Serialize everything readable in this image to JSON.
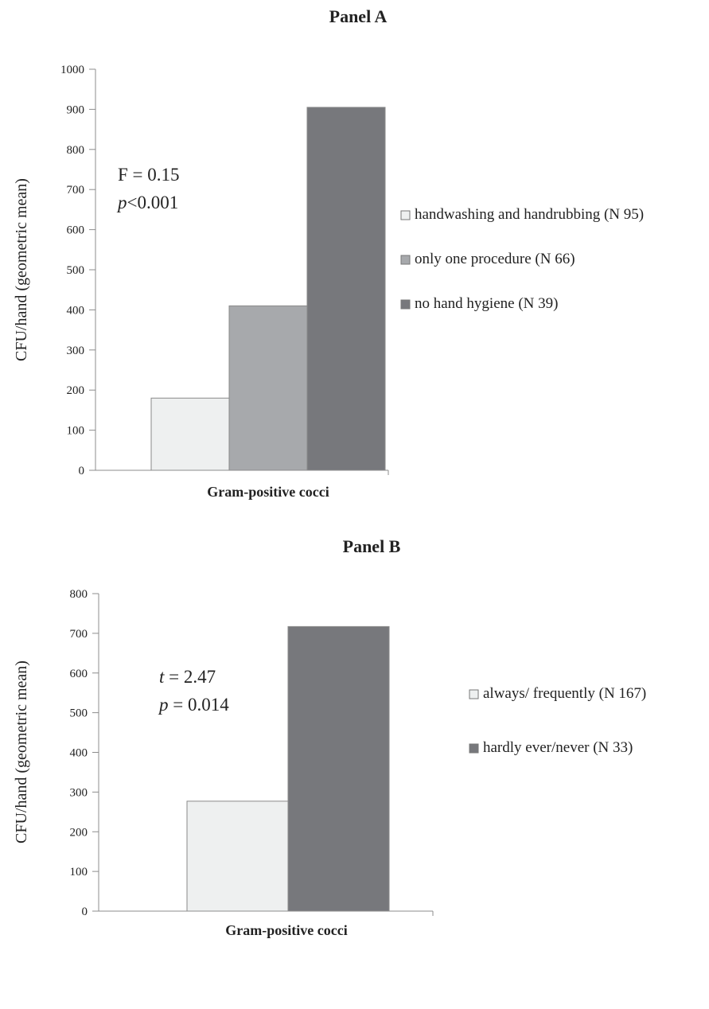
{
  "chart_data": [
    {
      "type": "bar",
      "title": "Panel A",
      "ylabel": "CFU/hand (geometric   mean)",
      "xlabel": "",
      "categories": [
        "Gram-positive cocci"
      ],
      "ylim": [
        0,
        1000
      ],
      "yticks": [
        0,
        100,
        200,
        300,
        400,
        500,
        600,
        700,
        800,
        900,
        1000
      ],
      "legend_position": "right",
      "series": [
        {
          "name": "handwashing and handrubbing (N 95)",
          "values": [
            180
          ],
          "color": "#eef0f0"
        },
        {
          "name": "only one procedure (N 66)",
          "values": [
            410
          ],
          "color": "#a7a9ac"
        },
        {
          "name": "no hand hygiene (N 39)",
          "values": [
            905
          ],
          "color": "#77787c"
        }
      ],
      "annotation": {
        "line1": {
          "prefix": "",
          "italic": "",
          "text": "F = 0.15"
        },
        "line2": {
          "prefix": "",
          "italic": "p",
          "text": "<0.001"
        }
      }
    },
    {
      "type": "bar",
      "title": "Panel B",
      "ylabel": "CFU/hand (geometric   mean)",
      "xlabel": "",
      "categories": [
        "Gram-positive cocci"
      ],
      "ylim": [
        0,
        800
      ],
      "yticks": [
        0,
        100,
        200,
        300,
        400,
        500,
        600,
        700,
        800
      ],
      "legend_position": "right",
      "series": [
        {
          "name": "always/ frequently (N 167)",
          "values": [
            277
          ],
          "color": "#eef0f0"
        },
        {
          "name": "hardly ever/never (N 33)",
          "values": [
            717
          ],
          "color": "#77787c"
        }
      ],
      "annotation": {
        "line1": {
          "prefix": "",
          "italic": "t",
          "text": " = 2.47"
        },
        "line2": {
          "prefix": "",
          "italic": "p",
          "text": " = 0.014"
        }
      }
    }
  ]
}
